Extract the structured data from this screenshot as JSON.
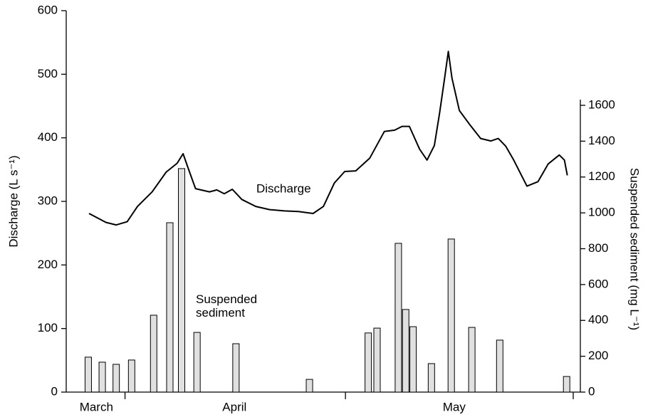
{
  "chart_data": {
    "type": "combo",
    "y_label": "Discharge (L s⁻¹)",
    "y2_label": "Suspended sediment (mg L⁻¹)",
    "xlim": [
      23,
      92
    ],
    "month_bounds": [
      31,
      61,
      92
    ],
    "month_labels": [
      {
        "value": 27.1,
        "label": "March"
      },
      {
        "value": 45.9,
        "label": "April"
      },
      {
        "value": 75.8,
        "label": "May"
      }
    ],
    "ylim": [
      0,
      600
    ],
    "yticks": [
      0,
      100,
      200,
      300,
      400,
      500,
      600
    ],
    "y2lim": [
      0,
      1600
    ],
    "y2ticks": [
      0,
      200,
      400,
      600,
      800,
      1000,
      1200,
      1400,
      1600
    ],
    "series": [
      {
        "name": "Discharge",
        "type": "line",
        "color": "#000000",
        "x": [
          26.1,
          28.4,
          29.8,
          31.3,
          32.7,
          34.7,
          36.6,
          38.1,
          38.9,
          39.6,
          40.6,
          42.5,
          43.5,
          44.5,
          45.6,
          46.9,
          48.8,
          50.7,
          52.7,
          54.6,
          56.6,
          58.0,
          59.5,
          60.9,
          62.4,
          64.3,
          66.3,
          67.7,
          68.7,
          69.7,
          71.1,
          72.1,
          73.1,
          73.8,
          74.5,
          75.0,
          75.5,
          76.5,
          77.9,
          79.4,
          80.8,
          81.8,
          82.8,
          83.9,
          85.7,
          87.2,
          88.6,
          90.1,
          90.8,
          91.2
        ],
        "values": [
          281,
          267,
          263,
          268,
          292,
          315,
          346,
          360,
          375,
          352,
          320,
          315,
          318,
          312,
          319,
          303,
          292,
          287,
          285,
          284,
          281,
          292,
          329,
          347,
          348,
          368,
          410,
          412,
          418,
          418,
          382,
          365,
          388,
          438,
          494,
          536,
          494,
          443,
          421,
          399,
          395,
          399,
          387,
          365,
          324,
          331,
          359,
          373,
          365,
          341
        ]
      },
      {
        "name": "Suspended sediment",
        "type": "bar",
        "axis": "y2",
        "color": "#e0e0e0",
        "x": [
          26.0,
          27.9,
          29.8,
          31.9,
          34.9,
          37.1,
          38.7,
          40.8,
          46.1,
          56.1,
          64.1,
          65.3,
          68.2,
          69.2,
          70.2,
          72.7,
          75.4,
          78.2,
          82.0,
          91.1
        ],
        "values": [
          195,
          167,
          155,
          179,
          429,
          945,
          1247,
          333,
          270,
          71,
          330,
          357,
          830,
          461,
          365,
          159,
          854,
          361,
          290,
          87
        ]
      }
    ]
  }
}
